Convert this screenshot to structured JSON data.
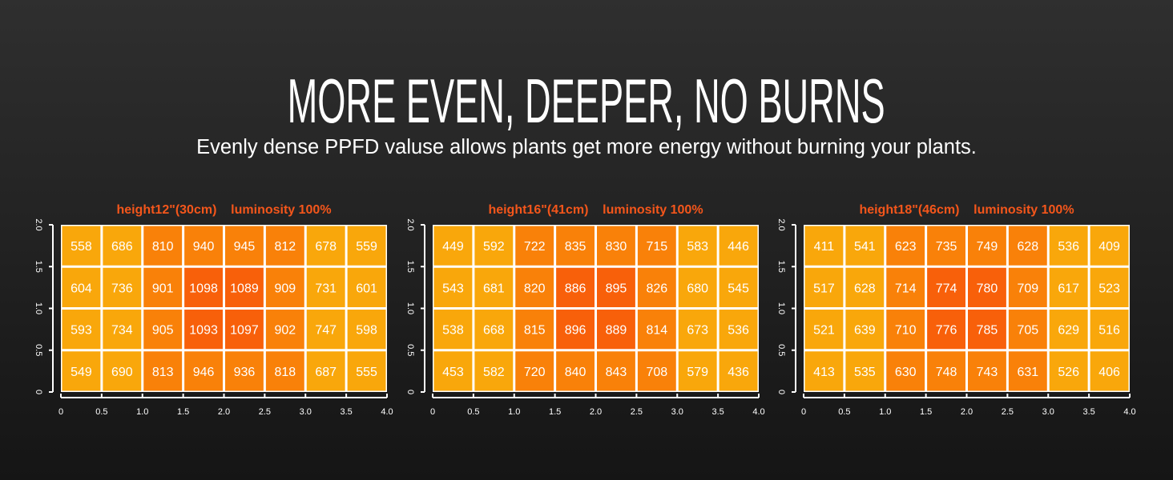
{
  "header": {
    "title": "MORE EVEN, DEEPER, NO BURNS",
    "subtitle": "Evenly dense PPFD valuse allows plants get more energy without burning your plants."
  },
  "colors": {
    "title_orange": "#F4561B",
    "low": "#F9A70B",
    "mid": "#F98109",
    "high": "#F8600A",
    "grid": "#FFFFFF"
  },
  "chart_data": [
    {
      "type": "heatmap",
      "title": "height12\"(30cm)    luminosity 100%",
      "x_ticks": [
        "0",
        "0.5",
        "1.0",
        "1.5",
        "2.0",
        "2.5",
        "3.0",
        "3.5",
        "4.0"
      ],
      "y_ticks": [
        "0",
        "0.5",
        "1.0",
        "1.5",
        "2.0"
      ],
      "xlim": [
        0,
        4
      ],
      "ylim": [
        0,
        2
      ],
      "rows_top_to_bottom": [
        [
          558,
          686,
          810,
          940,
          945,
          812,
          678,
          559
        ],
        [
          604,
          736,
          901,
          1098,
          1089,
          909,
          731,
          601
        ],
        [
          593,
          734,
          905,
          1093,
          1097,
          902,
          747,
          598
        ],
        [
          549,
          690,
          813,
          946,
          936,
          818,
          687,
          555
        ]
      ]
    },
    {
      "type": "heatmap",
      "title": "height16\"(41cm)    luminosity 100%",
      "x_ticks": [
        "0",
        "0.5",
        "1.0",
        "1.5",
        "2.0",
        "2.5",
        "3.0",
        "3.5",
        "4.0"
      ],
      "y_ticks": [
        "0",
        "0.5",
        "1.0",
        "1.5",
        "2.0"
      ],
      "xlim": [
        0,
        4
      ],
      "ylim": [
        0,
        2
      ],
      "rows_top_to_bottom": [
        [
          449,
          592,
          722,
          835,
          830,
          715,
          583,
          446
        ],
        [
          543,
          681,
          820,
          886,
          895,
          826,
          680,
          545
        ],
        [
          538,
          668,
          815,
          896,
          889,
          814,
          673,
          536
        ],
        [
          453,
          582,
          720,
          840,
          843,
          708,
          579,
          436
        ]
      ]
    },
    {
      "type": "heatmap",
      "title": "height18\"(46cm)    luminosity 100%",
      "x_ticks": [
        "0",
        "0.5",
        "1.0",
        "1.5",
        "2.0",
        "2.5",
        "3.0",
        "3.5",
        "4.0"
      ],
      "y_ticks": [
        "0",
        "0.5",
        "1.0",
        "1.5",
        "2.0"
      ],
      "xlim": [
        0,
        4
      ],
      "ylim": [
        0,
        2
      ],
      "rows_top_to_bottom": [
        [
          411,
          541,
          623,
          735,
          749,
          628,
          536,
          409
        ],
        [
          517,
          628,
          714,
          774,
          780,
          709,
          617,
          523
        ],
        [
          521,
          639,
          710,
          776,
          785,
          705,
          629,
          516
        ],
        [
          413,
          535,
          630,
          748,
          743,
          631,
          526,
          406
        ]
      ]
    }
  ]
}
